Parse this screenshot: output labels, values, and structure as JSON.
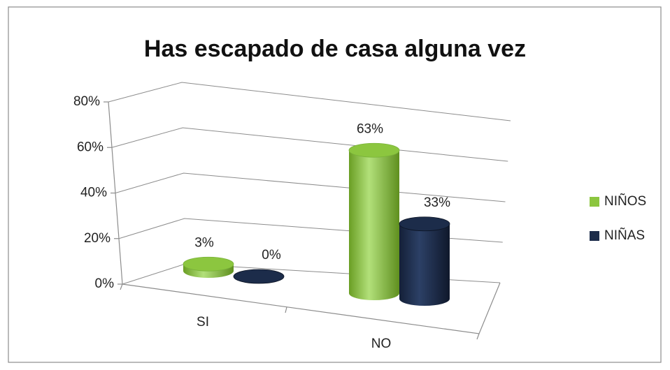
{
  "chart_data": {
    "type": "bar3d",
    "title": "Has escapado de casa alguna vez",
    "categories": [
      "SI",
      "NO"
    ],
    "series": [
      {
        "name": "NIÑOS",
        "color": "#8cc63f",
        "values": [
          3,
          63
        ],
        "value_labels": [
          "3%",
          "63%"
        ]
      },
      {
        "name": "NIÑAS",
        "color": "#1c2c4a",
        "values": [
          0,
          33
        ],
        "value_labels": [
          "0%",
          "33%"
        ]
      }
    ],
    "ylim": [
      0,
      80
    ],
    "yticks": [
      {
        "value": 0,
        "label": "0%"
      },
      {
        "value": 20,
        "label": "20%"
      },
      {
        "value": 40,
        "label": "40%"
      },
      {
        "value": 60,
        "label": "60%"
      },
      {
        "value": 80,
        "label": "80%"
      }
    ],
    "grid": true,
    "legend": "right"
  }
}
